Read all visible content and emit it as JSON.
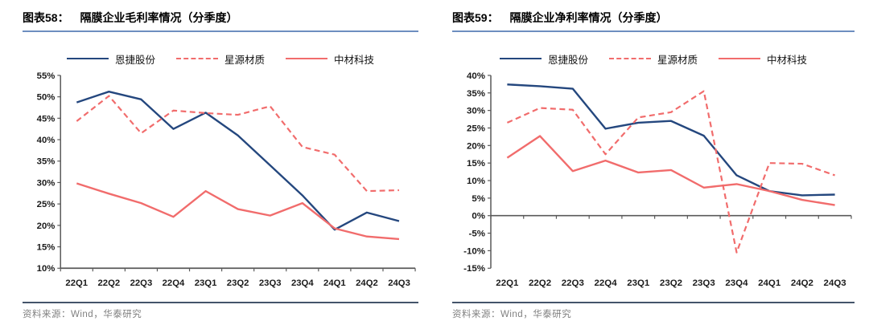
{
  "colors": {
    "navy": "#24477E",
    "red": "#F16C6C",
    "title_underline": "#6D8EBF",
    "footer_divider": "#44546A",
    "footer_text": "#808080",
    "axis": "#595959",
    "tick_label": "#1a1a1a"
  },
  "chart_data": [
    {
      "type": "line",
      "figure_label": "图表58：",
      "title": "隔膜企业毛利率情况（分季度）",
      "source": "资料来源：Wind，华泰研究",
      "categories": [
        "22Q1",
        "22Q2",
        "22Q3",
        "22Q4",
        "23Q1",
        "23Q2",
        "23Q3",
        "23Q4",
        "24Q1",
        "24Q2",
        "24Q3"
      ],
      "series": [
        {
          "name": "恩捷股份",
          "color": "#24477E",
          "dash": "solid",
          "values": [
            48.7,
            51.2,
            49.4,
            42.5,
            46.3,
            41.0,
            34.0,
            27.0,
            19.0,
            23.0,
            21.0
          ]
        },
        {
          "name": "星源材质",
          "color": "#F16C6C",
          "dash": "dashed",
          "values": [
            44.3,
            50.2,
            41.5,
            46.8,
            46.2,
            45.8,
            47.8,
            38.3,
            36.5,
            28.0,
            28.2
          ]
        },
        {
          "name": "中材科技",
          "color": "#F16C6C",
          "dash": "solid",
          "values": [
            29.8,
            27.4,
            25.2,
            22.0,
            28.0,
            23.8,
            22.3,
            25.2,
            19.3,
            17.4,
            16.8
          ]
        }
      ],
      "ylim": [
        10,
        55
      ],
      "ytick_step": 5,
      "tick_format": "percent",
      "x_axis_at": 10,
      "grid": false,
      "legend_position": "top"
    },
    {
      "type": "line",
      "figure_label": "图表59：",
      "title": "隔膜企业净利率情况（分季度）",
      "source": "资料来源：Wind，华泰研究",
      "categories": [
        "22Q1",
        "22Q2",
        "22Q3",
        "22Q4",
        "23Q1",
        "23Q2",
        "23Q3",
        "23Q4",
        "24Q1",
        "24Q2",
        "24Q3"
      ],
      "series": [
        {
          "name": "恩捷股份",
          "color": "#24477E",
          "dash": "solid",
          "values": [
            37.4,
            36.9,
            36.2,
            24.8,
            26.5,
            27.0,
            22.8,
            11.5,
            7.0,
            5.8,
            6.0
          ]
        },
        {
          "name": "星源材质",
          "color": "#F16C6C",
          "dash": "dashed",
          "values": [
            26.5,
            30.7,
            30.2,
            17.5,
            28.0,
            29.5,
            35.5,
            -10.5,
            15.0,
            14.8,
            11.5
          ]
        },
        {
          "name": "中材科技",
          "color": "#F16C6C",
          "dash": "solid",
          "values": [
            16.5,
            22.7,
            12.7,
            15.7,
            12.3,
            13.0,
            8.0,
            9.0,
            7.0,
            4.5,
            3.0
          ]
        }
      ],
      "ylim": [
        -15,
        40
      ],
      "ytick_step": 5,
      "tick_format": "percent",
      "x_axis_at": 0,
      "grid": false,
      "legend_position": "top"
    }
  ]
}
